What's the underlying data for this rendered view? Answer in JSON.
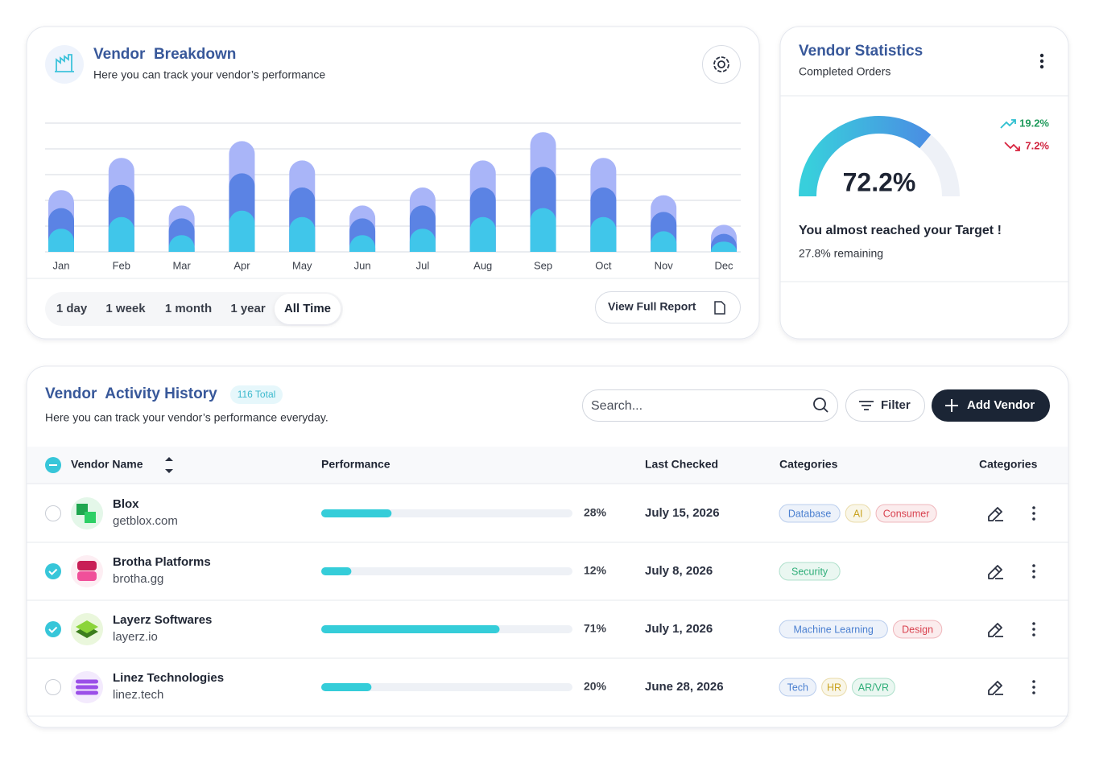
{
  "breakdown": {
    "title": "Vendor  Breakdown",
    "subtitle": "Here you can track your vendor’s performance",
    "ranges": [
      "1 day",
      "1 week",
      "1 month",
      "1 year",
      "All Time"
    ],
    "active_range": 4,
    "report_button": "View Full Report"
  },
  "chart_data": {
    "type": "bar",
    "stacked": true,
    "categories": [
      "Jan",
      "Feb",
      "Mar",
      "Apr",
      "May",
      "Jun",
      "Jul",
      "Aug",
      "Sep",
      "Oct",
      "Nov",
      "Dec"
    ],
    "series": [
      {
        "color": "#40c6ea",
        "values": [
          18,
          27,
          13,
          32,
          27,
          13,
          18,
          27,
          34,
          27,
          16,
          8
        ]
      },
      {
        "color": "#5b83e4",
        "values": [
          16,
          25,
          13,
          29,
          23,
          13,
          18,
          23,
          32,
          23,
          15,
          6
        ]
      },
      {
        "color": "#a9b5f8",
        "values": [
          14,
          21,
          10,
          25,
          21,
          10,
          14,
          21,
          27,
          23,
          13,
          7
        ]
      }
    ],
    "ylim": [
      0,
      100
    ],
    "yticks": [
      0,
      20,
      40,
      60,
      80,
      100
    ],
    "grid": true
  },
  "statistics": {
    "title": "Vendor Statistics",
    "subtitle": "Completed Orders",
    "gauge": {
      "value": 72.2,
      "value_label": "72.2%",
      "range": [
        0,
        100
      ]
    },
    "trend_up": "19.2%",
    "trend_down": "7.2%",
    "message": "You almost reached your Target !",
    "remaining": "27.8% remaining"
  },
  "activity": {
    "title": "Vendor  Activity History",
    "badge": "116 Total",
    "subtitle": "Here you can track your vendor’s performance everyday.",
    "search_placeholder": "Search...",
    "filter_button": "Filter",
    "add_button": "Add Vendor",
    "columns": [
      "Vendor Name",
      "Performance",
      "Last Checked",
      "Categories",
      "Categories"
    ],
    "rows": [
      {
        "name": "Blox",
        "domain": "getblox.com",
        "checked": false,
        "performance": 28,
        "performance_label": "28%",
        "last_checked": "July 15, 2026",
        "tags": [
          {
            "text": "Database",
            "color": "#4a7fd0"
          },
          {
            "text": "AI",
            "color": "#c9a321"
          },
          {
            "text": "Consumer",
            "color": "#d8424f"
          }
        ]
      },
      {
        "name": "Brotha Platforms",
        "domain": "brotha.gg",
        "checked": true,
        "performance": 12,
        "performance_label": "12%",
        "last_checked": "July 8, 2026",
        "tags": [
          {
            "text": "Security",
            "color": "#2fae79"
          }
        ]
      },
      {
        "name": "Layerz Softwares",
        "domain": "layerz.io",
        "checked": true,
        "performance": 71,
        "performance_label": "71%",
        "last_checked": "July 1, 2026",
        "tags": [
          {
            "text": "Machine Learning",
            "color": "#4a7fd0"
          },
          {
            "text": "Design",
            "color": "#d8424f"
          }
        ]
      },
      {
        "name": "Linez Technologies",
        "domain": "linez.tech",
        "checked": false,
        "performance": 20,
        "performance_label": "20%",
        "last_checked": "June 28, 2026",
        "tags": [
          {
            "text": "Tech",
            "color": "#4a7fd0"
          },
          {
            "text": "HR",
            "color": "#c9a321"
          },
          {
            "text": "AR/VR",
            "color": "#2fae79"
          }
        ]
      }
    ]
  }
}
